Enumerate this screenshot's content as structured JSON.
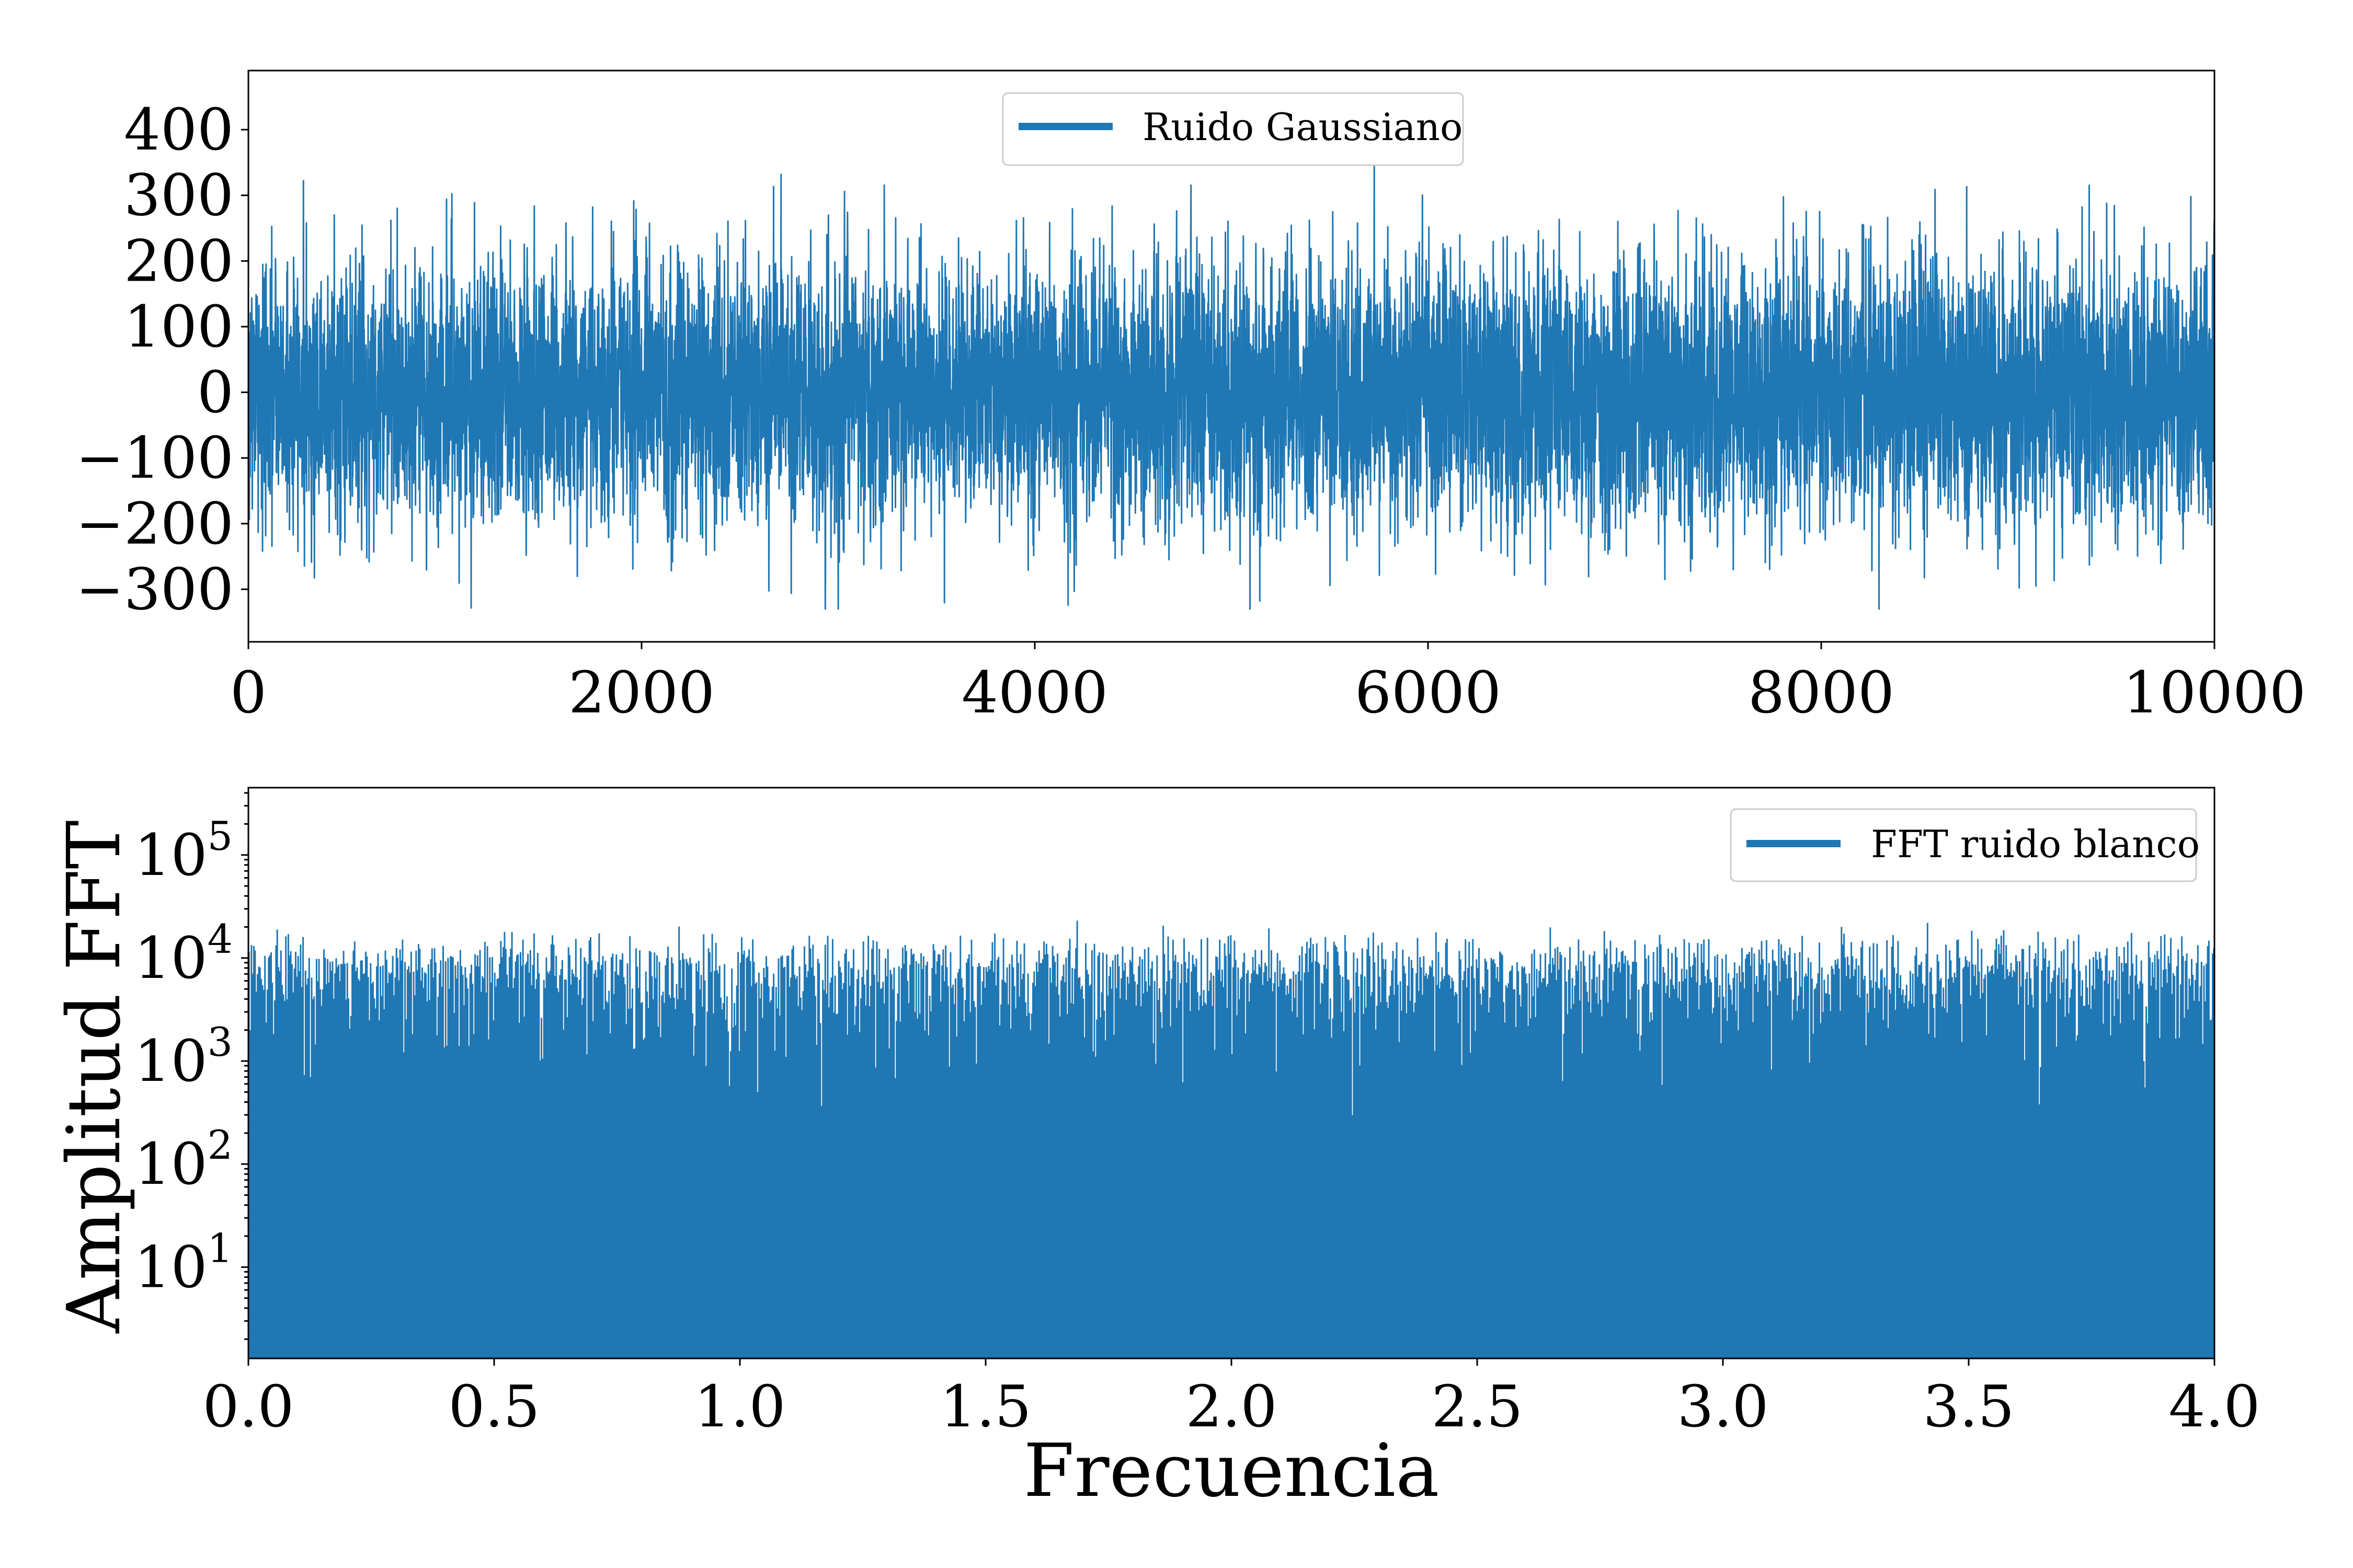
{
  "chart_data": [
    {
      "type": "line",
      "title": "",
      "xlabel": "",
      "ylabel": "",
      "xlim": [
        0,
        10000
      ],
      "ylim": [
        -380,
        490
      ],
      "xticks": [
        0,
        2000,
        4000,
        6000,
        8000,
        10000
      ],
      "xtick_labels": [
        "0",
        "2000",
        "4000",
        "6000",
        "8000",
        "10000"
      ],
      "yticks": [
        -300,
        -200,
        -100,
        0,
        100,
        200,
        300,
        400
      ],
      "ytick_labels": [
        "−300",
        "−200",
        "−100",
        "0",
        "100",
        "200",
        "300",
        "400"
      ],
      "grid": false,
      "legend_position": "top-center",
      "series": [
        {
          "name": "Ruido Gaussiano",
          "color": "#1f77b4",
          "distribution": "gaussian",
          "n_points": 10000,
          "mean": 0,
          "std": 100,
          "observed_min": -330,
          "observed_max": 425
        }
      ]
    },
    {
      "type": "bar",
      "title": "",
      "xlabel": "Frecuencia",
      "ylabel": "Amplitud FFT",
      "y_scale": "log",
      "xlim": [
        0,
        4.0
      ],
      "ylim": [
        1.3,
        450000
      ],
      "xticks": [
        0.0,
        0.5,
        1.0,
        1.5,
        2.0,
        2.5,
        3.0,
        3.5,
        4.0
      ],
      "xtick_labels": [
        "0.0",
        "0.5",
        "1.0",
        "1.5",
        "2.0",
        "2.5",
        "3.0",
        "3.5",
        "4.0"
      ],
      "yticks": [
        10,
        100,
        1000,
        10000,
        100000
      ],
      "ytick_labels": [
        {
          "base": "10",
          "exp": "1"
        },
        {
          "base": "10",
          "exp": "2"
        },
        {
          "base": "10",
          "exp": "3"
        },
        {
          "base": "10",
          "exp": "4"
        },
        {
          "base": "10",
          "exp": "5"
        }
      ],
      "grid": false,
      "legend_position": "top-right",
      "series": [
        {
          "name": "FFT ruido blanco",
          "color": "#1f77b4",
          "typical_amplitude": 10000,
          "peak_amplitude": 28000
        }
      ]
    }
  ]
}
